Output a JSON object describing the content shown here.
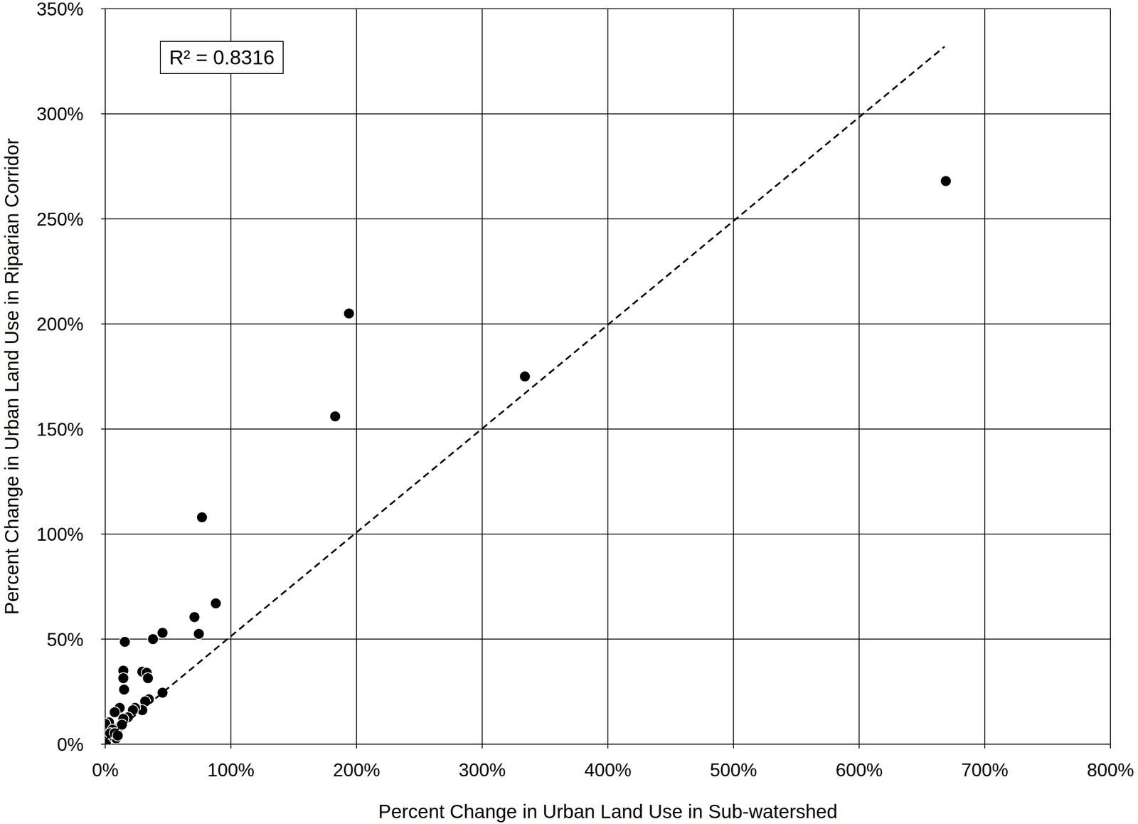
{
  "chart_data": {
    "type": "scatter",
    "x_label": "Percent Change in Urban Land Use in Sub-watershed",
    "y_label": "Percent Change in Urban Land Use in Riparian Corridor",
    "annotation": "R² = 0.8316",
    "series": [
      {
        "type": "scatter",
        "color": "#000000",
        "marker": "circle",
        "x": [
          669,
          194,
          183,
          334,
          77,
          88,
          71,
          74.5,
          45.6,
          38,
          15.6,
          45.6,
          14.4,
          14.4,
          15,
          29.5,
          33,
          34,
          34.7,
          31.8,
          29.5,
          23.7,
          22,
          11.5,
          7.5,
          18,
          14.4,
          12,
          13.3,
          3,
          0,
          5.8,
          8.7,
          1.7,
          0.6,
          4,
          7.5,
          10
        ],
        "values": [
          268,
          205,
          156,
          175,
          108,
          67,
          60.5,
          52.5,
          53,
          50,
          48.7,
          24.5,
          35,
          31.4,
          26,
          34.5,
          34,
          31.4,
          21.4,
          20.4,
          16.2,
          17.3,
          16.2,
          17.3,
          15.2,
          12.8,
          12.1,
          8.6,
          9.3,
          10.4,
          9.7,
          6.9,
          2.8,
          3.5,
          0,
          5.2,
          5.2,
          4.1
        ]
      },
      {
        "type": "line",
        "color": "#000000",
        "line_style": "dashed",
        "x": [
          0,
          668
        ],
        "values": [
          2,
          332
        ]
      }
    ],
    "xlim": [
      0,
      800
    ],
    "xticks": [
      {
        "value": 0,
        "label": "0%"
      },
      {
        "value": 100,
        "label": "100%"
      },
      {
        "value": 200,
        "label": "200%"
      },
      {
        "value": 300,
        "label": "300%"
      },
      {
        "value": 400,
        "label": "400%"
      },
      {
        "value": 500,
        "label": "500%"
      },
      {
        "value": 600,
        "label": "600%"
      },
      {
        "value": 700,
        "label": "700%"
      },
      {
        "value": 800,
        "label": "800%"
      }
    ],
    "ylim": [
      0,
      350
    ],
    "yticks": [
      {
        "value": 0,
        "label": "0%"
      },
      {
        "value": 50,
        "label": "50%"
      },
      {
        "value": 100,
        "label": "100%"
      },
      {
        "value": 150,
        "label": "150%"
      },
      {
        "value": 200,
        "label": "200%"
      },
      {
        "value": 250,
        "label": "250%"
      },
      {
        "value": 300,
        "label": "300%"
      },
      {
        "value": 350,
        "label": "350%"
      }
    ],
    "grid": true
  }
}
